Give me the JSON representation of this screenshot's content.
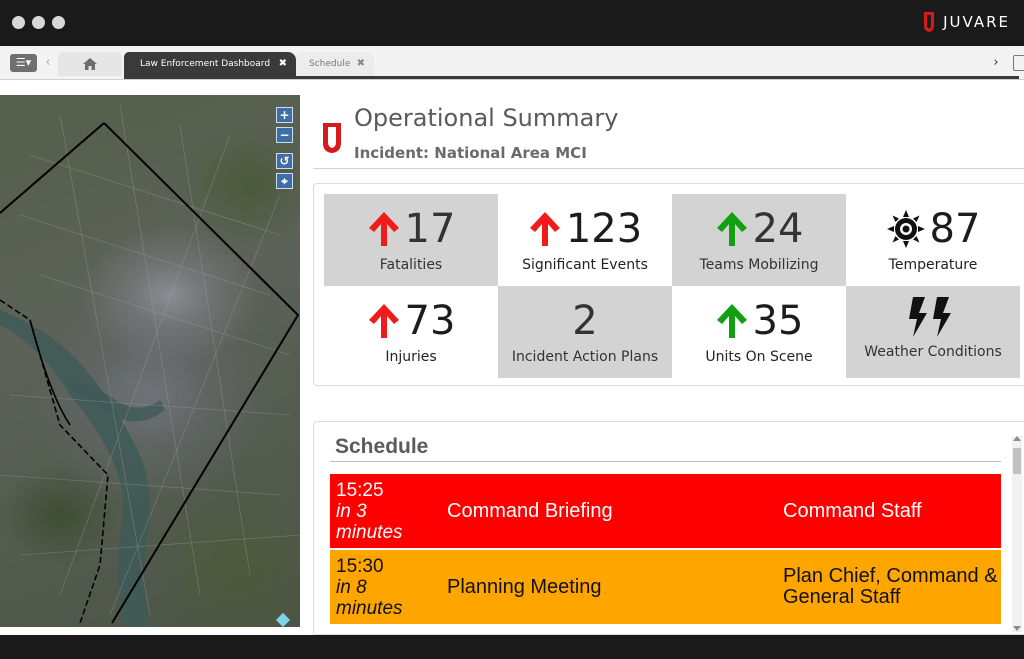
{
  "window": {
    "brand_name": "JUVARE",
    "brand_color": "#d71920"
  },
  "tabs": {
    "home_icon": "home-icon",
    "active_label": "Law Enforcement Dashboard",
    "inactive_label": "Schedule",
    "close_glyph": "✖"
  },
  "map": {
    "controls": [
      "+",
      "−",
      "↺",
      "⌖"
    ]
  },
  "summary": {
    "title": "Operational Summary",
    "subtitle": "Incident: National Area MCI"
  },
  "metrics": [
    {
      "value": "17",
      "label": "Fatalities",
      "trend": "up",
      "trend_color": "#f01c1c",
      "shaded": true
    },
    {
      "value": "123",
      "label": "Significant Events",
      "trend": "up",
      "trend_color": "#f01c1c",
      "shaded": false
    },
    {
      "value": "24",
      "label": "Teams Mobilizing",
      "trend": "up",
      "trend_color": "#10a010",
      "shaded": true
    },
    {
      "value": "87",
      "label": "Temperature",
      "icon": "sun-icon",
      "shaded": false
    },
    {
      "value": "73",
      "label": "Injuries",
      "trend": "up",
      "trend_color": "#f01c1c",
      "shaded": false
    },
    {
      "value": "2",
      "label": "Incident Action Plans",
      "shaded": true
    },
    {
      "value": "35",
      "label": "Units On Scene",
      "trend": "up",
      "trend_color": "#10a010",
      "shaded": false
    },
    {
      "value": "",
      "label": "Weather Conditions",
      "icon": "lightning-icon",
      "shaded": true
    }
  ],
  "schedule": {
    "title": "Schedule",
    "rows": [
      {
        "time": "15:25",
        "relative": "in 3 minutes",
        "event": "Command Briefing",
        "who": "Command Staff",
        "color": "#ff0000"
      },
      {
        "time": "15:30",
        "relative": "in 8 minutes",
        "event": "Planning Meeting",
        "who": "Plan Chief, Command & General Staff",
        "color": "#ffa500"
      }
    ]
  }
}
